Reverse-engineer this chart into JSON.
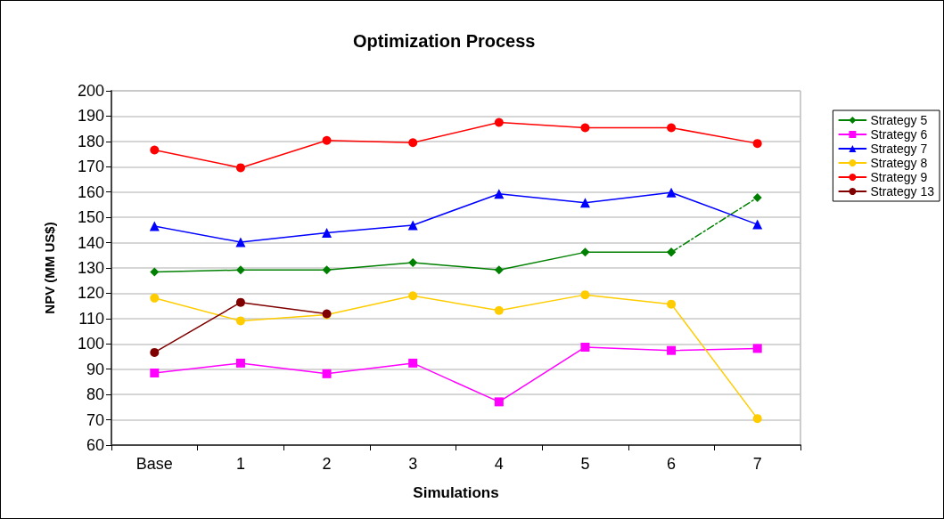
{
  "chart_data": {
    "type": "line",
    "title": "Optimization Process",
    "xlabel": "Simulations",
    "ylabel": "NPV (MM US$)",
    "categories": [
      "Base",
      "1",
      "2",
      "3",
      "4",
      "5",
      "6",
      "7"
    ],
    "ylim": [
      60,
      200
    ],
    "yticks": [
      60,
      70,
      80,
      90,
      100,
      110,
      120,
      130,
      140,
      150,
      160,
      170,
      180,
      190,
      200
    ],
    "grid": "y",
    "legend": "right",
    "line_style": "solid",
    "series": [
      {
        "name": "Strategy 5",
        "color": "#008000",
        "marker": "diamond",
        "values": [
          128.4,
          129.2,
          129.2,
          132.1,
          129.2,
          136.2,
          136.2,
          null
        ]
      },
      {
        "color": "#008000",
        "marker": "diamond",
        "line_style": "dashed",
        "values": [
          null,
          null,
          null,
          null,
          null,
          null,
          136.2,
          157.8
        ]
      },
      {
        "name": "Strategy 6",
        "color": "#ff00ff",
        "marker": "square",
        "values": [
          88.5,
          92.4,
          88.2,
          92.4,
          77.1,
          98.7,
          97.4,
          98.2
        ]
      },
      {
        "name": "Strategy 7",
        "color": "#0000ff",
        "marker": "triangle",
        "values": [
          146.5,
          140.2,
          143.9,
          146.9,
          159.3,
          155.8,
          159.8,
          147.2
        ]
      },
      {
        "name": "Strategy 8",
        "color": "#ffcc00",
        "marker": "circle",
        "values": [
          118.1,
          109.1,
          111.5,
          119.0,
          113.2,
          119.4,
          115.7,
          70.5
        ]
      },
      {
        "name": "Strategy 9",
        "color": "#ff0000",
        "marker": "circle",
        "values": [
          176.6,
          169.6,
          180.4,
          179.5,
          187.5,
          185.4,
          185.4,
          179.2
        ]
      },
      {
        "name": "Strategy 13",
        "color": "#800000",
        "marker": "circle",
        "values": [
          96.6,
          116.4,
          111.9,
          null,
          null,
          null,
          null,
          null
        ]
      }
    ]
  }
}
